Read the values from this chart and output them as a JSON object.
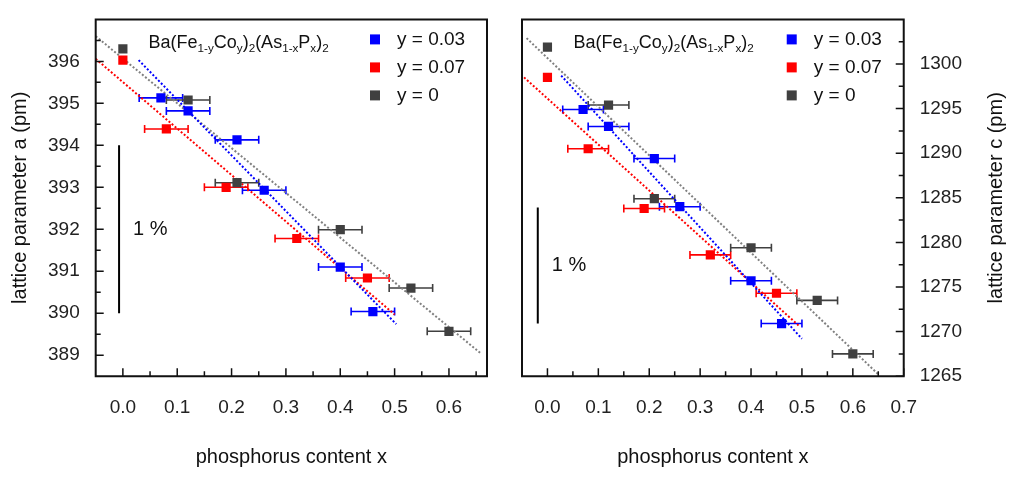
{
  "chart_data": [
    {
      "type": "scatter",
      "xlabel": "phosphorus content x",
      "ylabel": "lattice parameter a (pm)",
      "legend": "top right",
      "marker": "square",
      "xlim": [
        -0.05,
        0.67
      ],
      "xticks": [
        {
          "value": 0,
          "label": "0.0"
        },
        {
          "value": 0.05,
          "label": null
        },
        {
          "value": 0.1,
          "label": "0.1"
        },
        {
          "value": 0.15,
          "label": null
        },
        {
          "value": 0.2,
          "label": "0.2"
        },
        {
          "value": 0.25,
          "label": null
        },
        {
          "value": 0.3,
          "label": "0.3"
        },
        {
          "value": 0.35,
          "label": null
        },
        {
          "value": 0.4,
          "label": "0.4"
        },
        {
          "value": 0.45,
          "label": null
        },
        {
          "value": 0.5,
          "label": "0.5"
        },
        {
          "value": 0.55,
          "label": null
        },
        {
          "value": 0.6,
          "label": "0.6"
        },
        {
          "value": 0.65,
          "label": null
        }
      ],
      "ylim": [
        388.5,
        397
      ],
      "yticks": [
        389,
        {
          "value": 389.5,
          "label": null
        },
        390,
        {
          "value": 390.5,
          "label": null
        },
        391,
        {
          "value": 391.5,
          "label": null
        },
        392,
        {
          "value": 392.5,
          "label": null
        },
        393,
        {
          "value": 393.5,
          "label": null
        },
        394,
        {
          "value": 394.5,
          "label": null
        },
        395,
        {
          "value": 395.5,
          "label": null
        },
        396,
        {
          "value": 396.5,
          "label": null
        }
      ],
      "annotations": [
        "Ba(Fe$_{1-y}$Co$_{y}$)$_{2}$(As$_{1-x}$P$_{x}$)$_{2}$",
        "1 %"
      ],
      "series": [
        {
          "name": "y = 0.03",
          "color": "#0000ff",
          "x": [
            0.07,
            0.12,
            0.21,
            0.26,
            0.4,
            0.46
          ],
          "values": [
            395.13,
            394.82,
            394.13,
            392.93,
            391.1,
            390.04
          ],
          "xerrors": [
            0.04,
            0.04,
            0.04,
            0.04,
            0.04,
            0.04
          ]
        },
        {
          "name": "y = 0.07",
          "color": "#ff0000",
          "x": [
            0,
            0.08,
            0.19,
            0.32,
            0.45
          ],
          "values": [
            396.03,
            394.39,
            393,
            391.78,
            390.84
          ],
          "xerrors": [
            null,
            0.04,
            0.04,
            0.04,
            0.04
          ]
        },
        {
          "name": "y = 0",
          "color": "#404040",
          "x": [
            0,
            0.12,
            0.21,
            0.4,
            0.53,
            0.6
          ],
          "values": [
            396.3,
            395.08,
            393.11,
            391.99,
            390.6,
            389.57
          ],
          "xerrors": [
            null,
            0.04,
            0.04,
            0.04,
            0.04,
            0.04
          ]
        },
        {
          "type": "line",
          "color": "#0000ff",
          "line_style": "dotted",
          "marker": "none",
          "x": [
            0.029,
            0.503
          ],
          "values": [
            396.03,
            389.74
          ]
        },
        {
          "type": "line",
          "color": "#ff0000",
          "line_style": "dotted",
          "marker": "none",
          "x": [
            -0.05,
            0.5
          ],
          "values": [
            396.06,
            389.97
          ]
        },
        {
          "type": "line",
          "color": "#808080",
          "line_style": "dotted",
          "marker": "none",
          "x": [
            -0.05,
            0.658
          ],
          "values": [
            396.6,
            389.05
          ]
        },
        {
          "type": "line",
          "color": "#000000",
          "line_style": "solid",
          "marker": "none",
          "x": [
            -0.007,
            -0.007
          ],
          "values": [
            390,
            394
          ]
        }
      ]
    },
    {
      "type": "scatter",
      "xlabel": "phosphorus content x",
      "y2label": "lattice parameter c (pm)",
      "legend": "top right",
      "marker": "square",
      "xlim": [
        -0.05,
        0.7
      ],
      "xticks": [
        {
          "value": 0,
          "label": "0.0"
        },
        {
          "value": 0.05,
          "label": null
        },
        {
          "value": 0.1,
          "label": "0.1"
        },
        {
          "value": 0.15,
          "label": null
        },
        {
          "value": 0.2,
          "label": "0.2"
        },
        {
          "value": 0.25,
          "label": null
        },
        {
          "value": 0.3,
          "label": "0.3"
        },
        {
          "value": 0.35,
          "label": null
        },
        {
          "value": 0.4,
          "label": "0.4"
        },
        {
          "value": 0.45,
          "label": null
        },
        {
          "value": 0.5,
          "label": "0.5"
        },
        {
          "value": 0.55,
          "label": null
        },
        {
          "value": 0.6,
          "label": "0.6"
        },
        {
          "value": 0.65,
          "label": null
        },
        {
          "value": 0.7,
          "label": "0.7"
        }
      ],
      "y2lim": [
        1265,
        1305
      ],
      "y2ticks": [
        1265,
        {
          "value": 1267.5,
          "label": null
        },
        1270,
        {
          "value": 1272.5,
          "label": null
        },
        1275,
        {
          "value": 1277.5,
          "label": null
        },
        1280,
        {
          "value": 1282.5,
          "label": null
        },
        1285,
        {
          "value": 1287.5,
          "label": null
        },
        1290,
        {
          "value": 1292.5,
          "label": null
        },
        1295,
        {
          "value": 1297.5,
          "label": null
        },
        1300,
        {
          "value": 1302.5,
          "label": null
        }
      ],
      "annotations": [
        "Ba(Fe$_{1-y}$Co$_{y}$)$_{2}$(As$_{1-x}$P$_{x}$)$_{2}$",
        "1 %"
      ],
      "series": [
        {
          "name": "y = 0.03",
          "axis": "y2",
          "color": "#0000ff",
          "x": [
            0.07,
            0.12,
            0.21,
            0.26,
            0.4,
            0.46
          ],
          "values": [
            1294.9,
            1293,
            1289.4,
            1284,
            1275.7,
            1270.9
          ],
          "xerrors": [
            0.04,
            0.04,
            0.04,
            0.04,
            0.04,
            0.04
          ]
        },
        {
          "name": "y = 0.07",
          "axis": "y2",
          "color": "#ff0000",
          "x": [
            0,
            0.08,
            0.19,
            0.32,
            0.45
          ],
          "values": [
            1298.5,
            1290.5,
            1283.8,
            1278.6,
            1274.3
          ],
          "xerrors": [
            null,
            0.04,
            0.04,
            0.04,
            0.04
          ]
        },
        {
          "name": "y = 0",
          "axis": "y2",
          "color": "#404040",
          "x": [
            0,
            0.12,
            0.21,
            0.4,
            0.53,
            0.6
          ],
          "values": [
            1301.9,
            1295.4,
            1284.9,
            1279.4,
            1273.5,
            1267.5
          ],
          "xerrors": [
            null,
            0.04,
            0.04,
            0.04,
            0.04,
            0.04
          ]
        },
        {
          "type": "line",
          "axis": "y2",
          "color": "#0000ff",
          "line_style": "dotted",
          "marker": "none",
          "x": [
            0.027,
            0.5
          ],
          "values": [
            1298.7,
            1269.2
          ]
        },
        {
          "type": "line",
          "axis": "y2",
          "color": "#ff0000",
          "line_style": "dotted",
          "marker": "none",
          "x": [
            -0.046,
            0.495
          ],
          "values": [
            1298.5,
            1270.6
          ]
        },
        {
          "type": "line",
          "axis": "y2",
          "color": "#808080",
          "line_style": "dotted",
          "marker": "none",
          "x": [
            -0.041,
            0.652
          ],
          "values": [
            1302.9,
            1265.1
          ]
        },
        {
          "type": "line",
          "axis": "y2",
          "color": "#000000",
          "line_style": "solid",
          "marker": "none",
          "x": [
            -0.019,
            -0.019
          ],
          "values": [
            1270.9,
            1283.9
          ]
        }
      ]
    }
  ]
}
